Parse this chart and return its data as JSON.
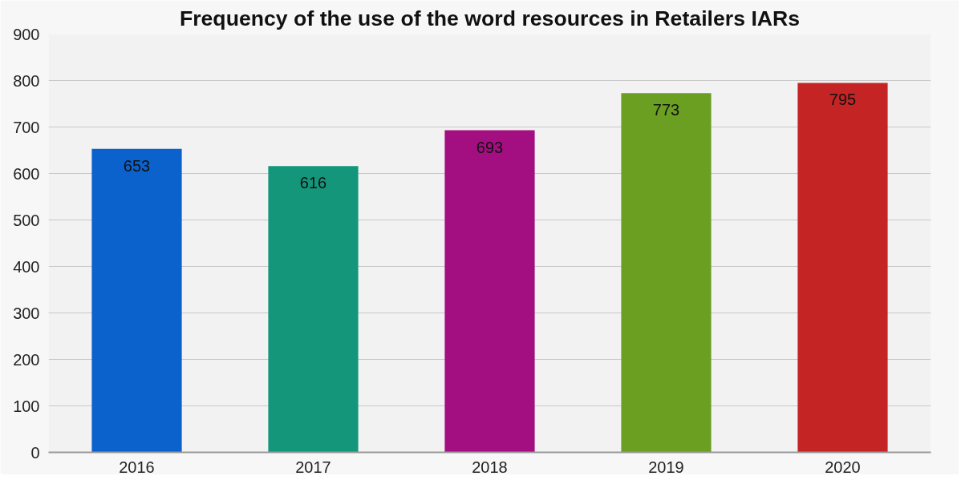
{
  "chart_data": {
    "type": "bar",
    "title": "Frequency of the use of the word resources in Retailers IARs",
    "categories": [
      "2016",
      "2017",
      "2018",
      "2019",
      "2020"
    ],
    "values": [
      653,
      616,
      693,
      773,
      795
    ],
    "colors": [
      "#0b62cc",
      "#14967b",
      "#a30f80",
      "#6b9f22",
      "#c42424"
    ],
    "ylim": [
      0,
      900
    ],
    "yticks": [
      0,
      100,
      200,
      300,
      400,
      500,
      600,
      700,
      800,
      900
    ],
    "grid": "y",
    "data_labels": true
  }
}
